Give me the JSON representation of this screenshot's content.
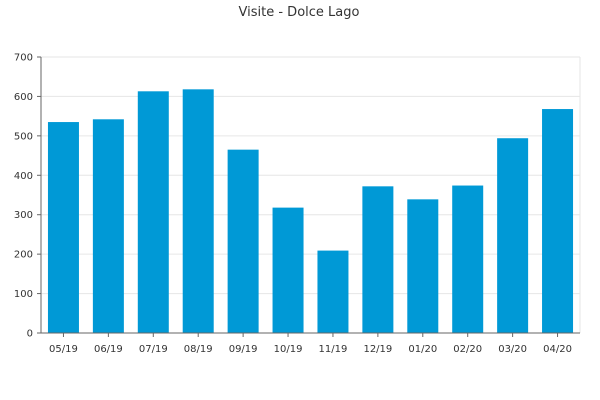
{
  "chart_data": {
    "type": "bar",
    "title": "Visite - Dolce Lago",
    "xlabel": "",
    "ylabel": "",
    "categories": [
      "05/19",
      "06/19",
      "07/19",
      "08/19",
      "09/19",
      "10/19",
      "11/19",
      "12/19",
      "01/20",
      "02/20",
      "03/20",
      "04/20"
    ],
    "values": [
      535,
      542,
      613,
      618,
      465,
      318,
      209,
      372,
      339,
      374,
      494,
      568
    ],
    "ylim": [
      0,
      700
    ],
    "yticks": [
      0,
      100,
      200,
      300,
      400,
      500,
      600,
      700
    ],
    "grid": true,
    "legend": "none",
    "colors": {
      "bar": "#0099d6",
      "grid": "#e6e6e6",
      "axis": "#666666"
    }
  }
}
